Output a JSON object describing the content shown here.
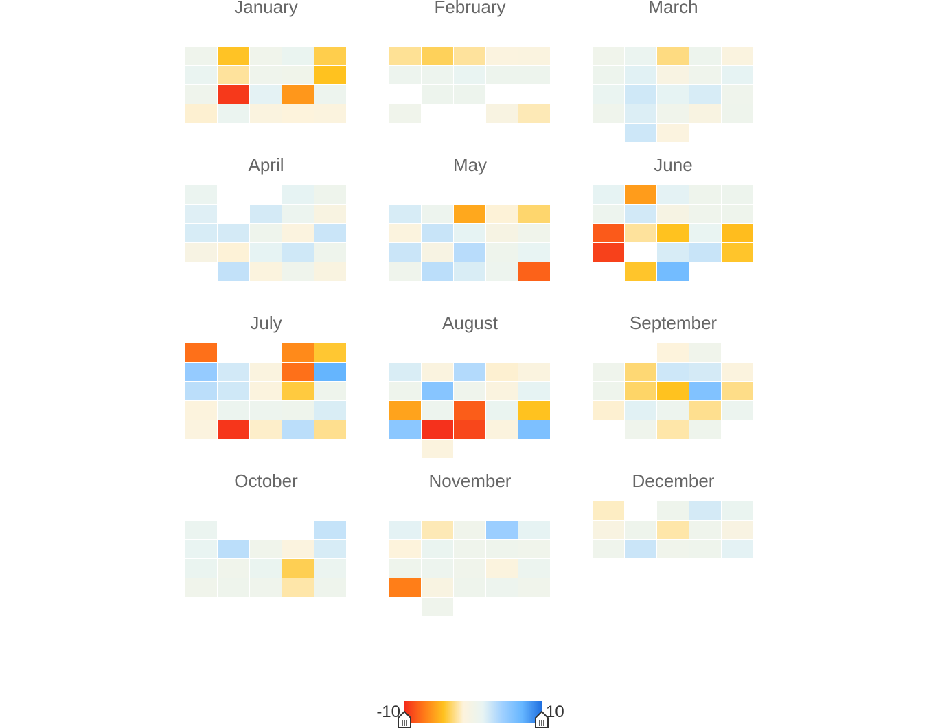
{
  "chart_data": {
    "type": "heatmap",
    "title": "",
    "value_range": [
      -10,
      10
    ],
    "color_scale": [
      "#f42b1c",
      "#ff7a18",
      "#ffc21f",
      "#fdf3dc",
      "#e8f4f3",
      "#9fd0ff",
      "#66b6ff",
      "#1f6fe0"
    ],
    "legend": {
      "min_label": "-10",
      "max_label": "10",
      "position": "bottom-center"
    },
    "months": [
      {
        "name": "January",
        "weeks": [
          [
            0.5,
            -4.2,
            0.4,
            1.1,
            -3.6
          ],
          [
            1.2,
            -2.4,
            0.5,
            0.3,
            -4.3
          ],
          [
            0.5,
            -9.5,
            1.6,
            -6.0,
            0.8
          ],
          [
            -1.6,
            1.0,
            -1.0,
            -1.4,
            -1.2
          ]
        ]
      },
      {
        "name": "February",
        "weeks": [
          [
            -2.5,
            -3.4,
            -2.4,
            -1.1,
            -1.0
          ],
          [
            0.8,
            0.8,
            1.3,
            0.7,
            0.7
          ],
          [
            null,
            0.7,
            0.7,
            null,
            null
          ],
          [
            0.4,
            null,
            null,
            -0.8,
            -2.0
          ]
        ]
      },
      {
        "name": "March",
        "weeks": [
          [
            0.4,
            1.0,
            -2.8,
            0.7,
            -1.0
          ],
          [
            0.7,
            1.7,
            -0.7,
            0.5,
            1.5
          ],
          [
            1.2,
            2.4,
            1.5,
            2.1,
            0.5
          ],
          [
            0.5,
            1.9,
            0.4,
            -0.8,
            0.6
          ],
          [
            null,
            2.5,
            -1.1,
            null,
            null
          ]
        ]
      },
      {
        "name": "April",
        "weeks": [
          [
            1.0,
            null,
            null,
            1.5,
            0.6
          ],
          [
            1.8,
            null,
            2.2,
            0.9,
            -0.8
          ],
          [
            2.1,
            2.2,
            0.6,
            -1.1,
            2.6
          ],
          [
            -0.6,
            -1.5,
            1.5,
            2.4,
            0.6
          ],
          [
            null,
            2.9,
            -1.2,
            0.5,
            -0.9
          ]
        ]
      },
      {
        "name": "May",
        "weeks": [
          [
            2.1,
            0.8,
            -5.3,
            -1.5,
            -3.1
          ],
          [
            -1.2,
            2.7,
            1.5,
            -0.5,
            0.4
          ],
          [
            2.6,
            -0.6,
            3.3,
            0.6,
            1.4
          ],
          [
            0.5,
            3.2,
            2.0,
            0.8,
            -8.0
          ]
        ]
      },
      {
        "name": "June",
        "weeks": [
          [
            1.5,
            -5.8,
            1.6,
            0.6,
            0.7
          ],
          [
            0.8,
            2.3,
            -0.5,
            0.5,
            0.6
          ],
          [
            -8.3,
            -2.4,
            -4.3,
            1.3,
            -4.5
          ],
          [
            -9.2,
            null,
            2.1,
            2.7,
            -4.1
          ],
          [
            null,
            -4.1,
            6.5,
            null,
            null
          ]
        ]
      },
      {
        "name": "July",
        "weeks": [
          [
            -7.5,
            null,
            null,
            -6.5,
            -4.0
          ],
          [
            4.8,
            2.3,
            -1.0,
            -7.5,
            7.2
          ],
          [
            3.2,
            2.4,
            -1.2,
            -3.8,
            0.6
          ],
          [
            -1.3,
            0.9,
            0.8,
            0.6,
            2.0
          ],
          [
            -1.1,
            -9.6,
            -1.7,
            3.2,
            -2.6
          ]
        ]
      },
      {
        "name": "August",
        "weeks": [
          [
            2.0,
            -1.0,
            3.5,
            -1.6,
            -1.0
          ],
          [
            0.6,
            5.5,
            0.5,
            -1.0,
            1.5
          ],
          [
            -5.5,
            0.8,
            -8.2,
            1.1,
            -4.3
          ],
          [
            5.3,
            -9.8,
            -9.0,
            -1.2,
            6.0
          ],
          [
            null,
            -1.2,
            null,
            null,
            null
          ]
        ]
      },
      {
        "name": "September",
        "weeks": [
          [
            null,
            null,
            -1.4,
            0.4,
            null
          ],
          [
            0.5,
            -3.0,
            2.5,
            2.2,
            -1.2
          ],
          [
            0.6,
            -3.2,
            -4.3,
            5.8,
            -2.7
          ],
          [
            -1.6,
            1.7,
            0.8,
            -2.6,
            0.9
          ],
          [
            null,
            0.5,
            -2.2,
            0.6,
            null
          ]
        ]
      },
      {
        "name": "October",
        "weeks": [
          [
            1.0,
            null,
            null,
            null,
            2.8
          ],
          [
            1.3,
            3.2,
            0.4,
            -1.1,
            2.1
          ],
          [
            1.1,
            0.4,
            1.1,
            -3.5,
            1.0
          ],
          [
            0.4,
            0.6,
            0.5,
            -2.2,
            0.6
          ]
        ]
      },
      {
        "name": "November",
        "weeks": [
          [
            1.6,
            -2.0,
            0.4,
            4.5,
            1.5
          ],
          [
            -1.4,
            1.1,
            0.5,
            0.6,
            0.4
          ],
          [
            0.6,
            0.8,
            0.4,
            -1.2,
            0.9
          ],
          [
            -7.0,
            -0.8,
            0.6,
            0.8,
            0.4
          ],
          [
            null,
            0.5,
            null,
            null,
            null
          ]
        ]
      },
      {
        "name": "December",
        "weeks": [
          [
            -1.8,
            null,
            0.6,
            2.2,
            1.1
          ],
          [
            -0.8,
            0.6,
            -2.2,
            0.5,
            -0.7
          ],
          [
            0.5,
            2.6,
            0.4,
            0.6,
            1.6
          ]
        ]
      }
    ]
  }
}
